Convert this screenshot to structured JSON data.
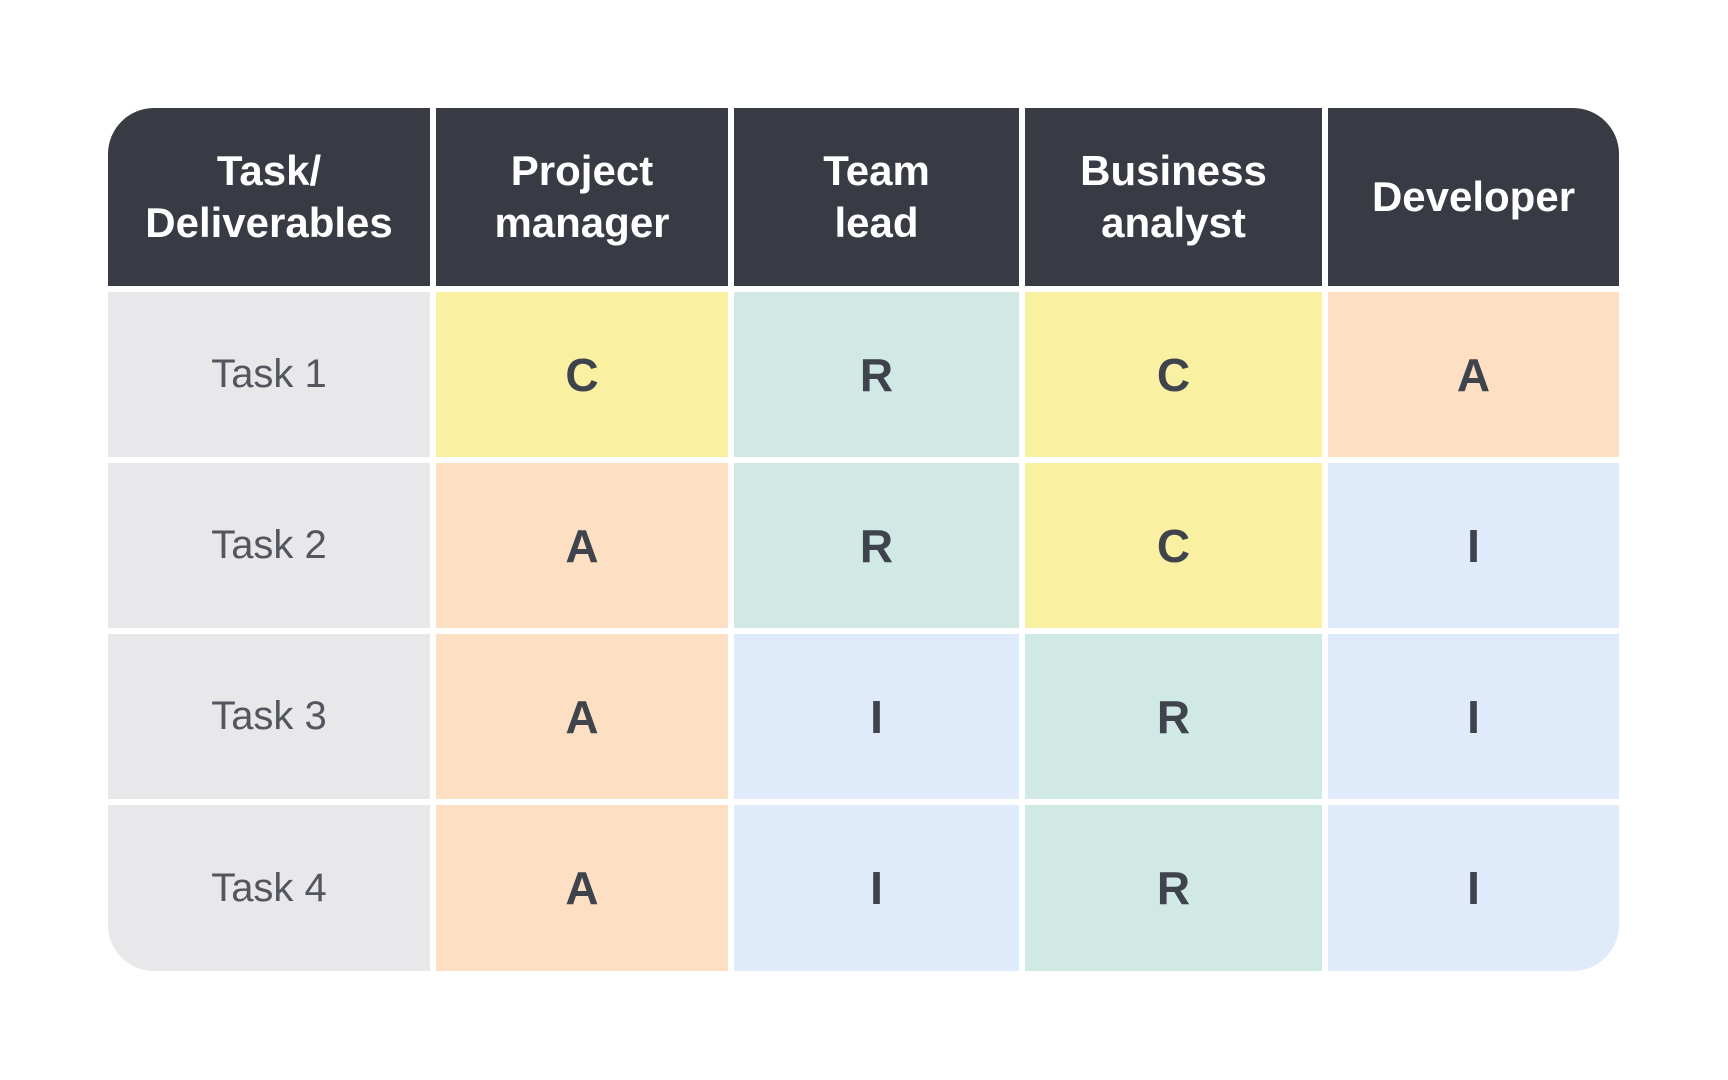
{
  "table": {
    "header": {
      "columns": [
        "Task/\nDeliverables",
        "Project\nmanager",
        "Team\nlead",
        "Business\nanalyst",
        "Developer"
      ]
    },
    "rows": [
      {
        "label": "Task 1",
        "values": [
          "C",
          "R",
          "C",
          "A"
        ]
      },
      {
        "label": "Task 2",
        "values": [
          "A",
          "R",
          "C",
          "I"
        ]
      },
      {
        "label": "Task 3",
        "values": [
          "A",
          "I",
          "R",
          "I"
        ]
      },
      {
        "label": "Task 4",
        "values": [
          "A",
          "I",
          "R",
          "I"
        ]
      }
    ],
    "colors": {
      "header_bg": "#383B44",
      "header_text": "#FFFFFF",
      "row_label_bg": "#E8E8EA",
      "row_label_text": "#53565E",
      "value_text": "#3F434C",
      "value_bg": {
        "R": "#D0E9E4",
        "A": "#FDE0C3",
        "C": "#FAF0A2",
        "I": "#DFEAFB"
      }
    }
  },
  "chart_data": {
    "type": "table",
    "columns": [
      "Task/Deliverables",
      "Project manager",
      "Team lead",
      "Business analyst",
      "Developer"
    ],
    "rows": [
      [
        "Task 1",
        "C",
        "R",
        "C",
        "A"
      ],
      [
        "Task 2",
        "A",
        "R",
        "C",
        "I"
      ],
      [
        "Task 3",
        "A",
        "I",
        "R",
        "I"
      ],
      [
        "Task 4",
        "A",
        "I",
        "R",
        "I"
      ]
    ],
    "cell_fill_by_value": {
      "R": "#D0E9E4",
      "A": "#FDE0C3",
      "C": "#FAF0A2",
      "I": "#DFEAFB"
    },
    "layout_hints": {
      "header_background": "#383B44",
      "row_label_background": "#E8E8EA",
      "grid_gap_color": "#FFFFFF",
      "outer_corner_radius_px": 46
    }
  }
}
